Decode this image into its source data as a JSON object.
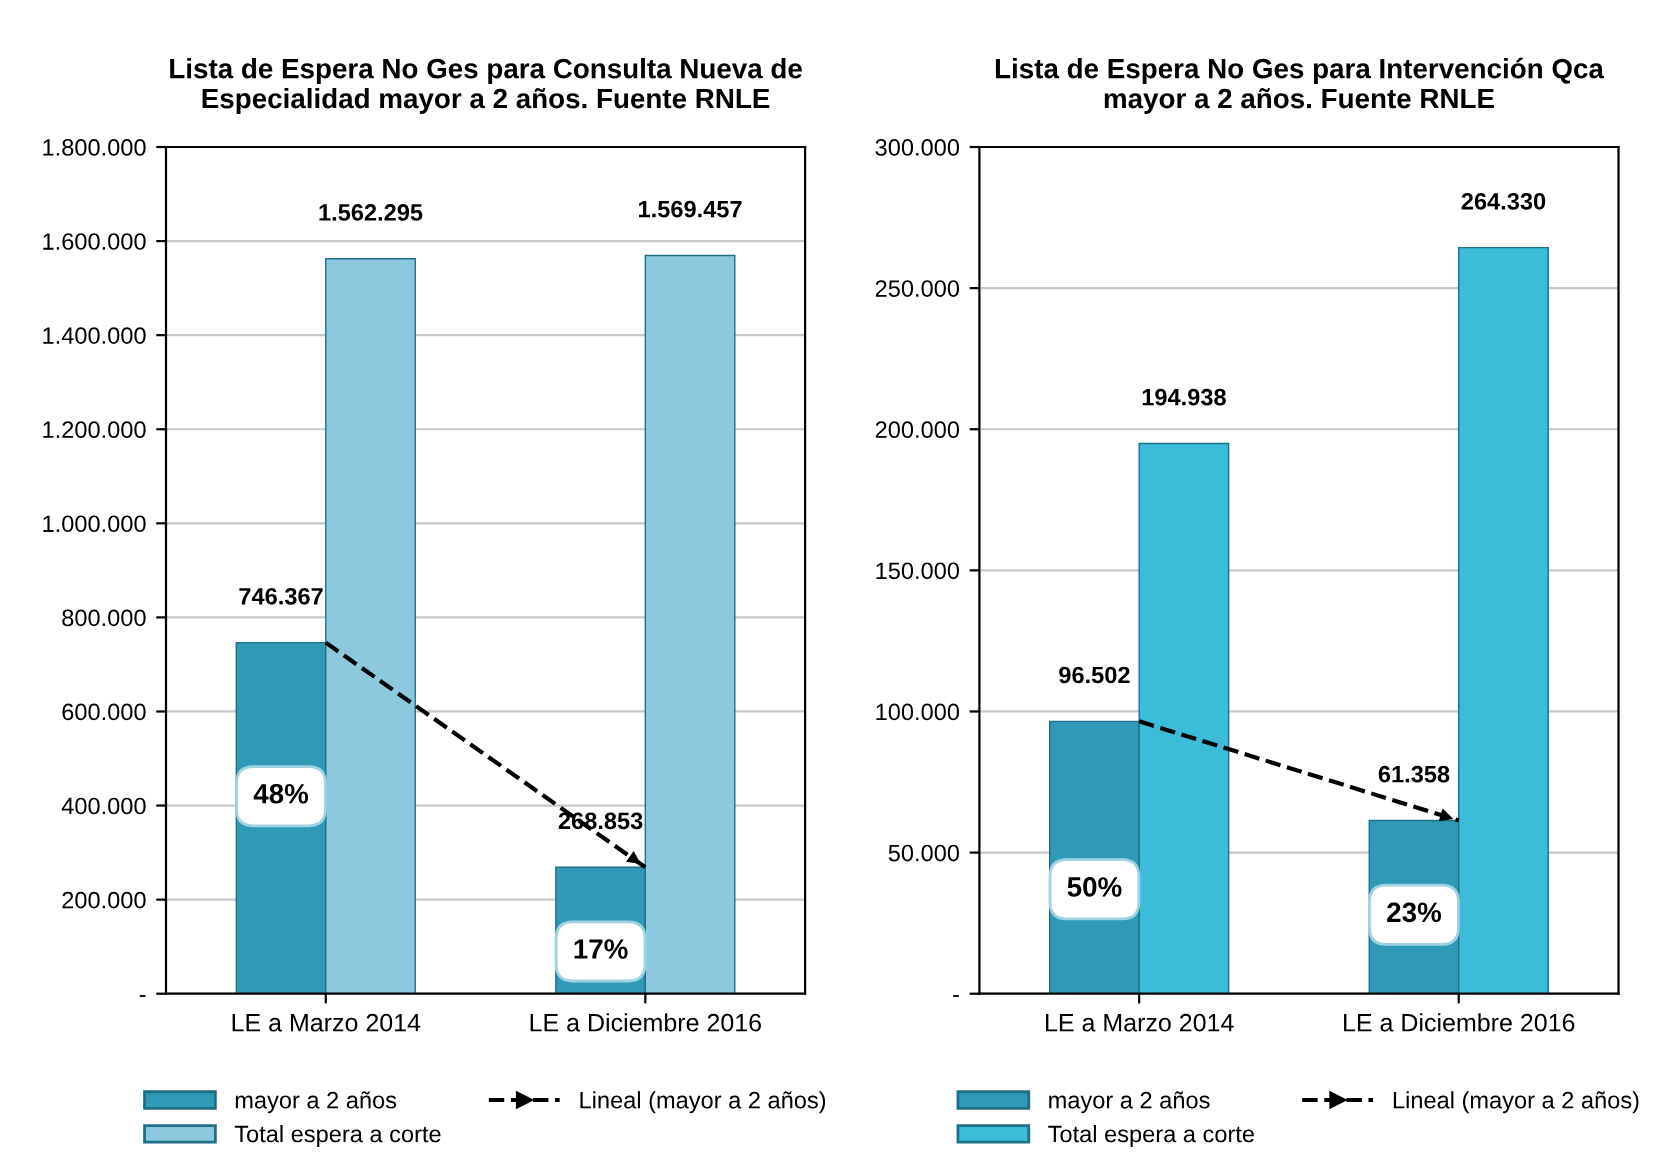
{
  "chart_data": [
    {
      "type": "bar",
      "title": "Lista de Espera No Ges para Consulta Nueva de Especialidad mayor a 2 años. Fuente RNLE",
      "categories": [
        "LE a Marzo 2014",
        "LE a Diciembre 2016"
      ],
      "series": [
        {
          "name": "mayor a 2 años",
          "color": "#2e9ab8",
          "values": [
            746367,
            268853
          ],
          "value_labels": [
            "746.367",
            "268.853"
          ]
        },
        {
          "name": "Total espera a corte",
          "color": "#8cc8de",
          "values": [
            1562295,
            1569457
          ],
          "value_labels": [
            "1.562.295",
            "1.569.457"
          ]
        },
        {
          "name": "Lineal (mayor a 2 años)",
          "type": "line",
          "color": "#000000",
          "line_style": "dashed",
          "values": [
            746367,
            268853
          ]
        }
      ],
      "ylim": [
        0,
        1800000
      ],
      "yticks": [
        {
          "value": 0,
          "label": "-"
        },
        {
          "value": 200000,
          "label": "200.000"
        },
        {
          "value": 400000,
          "label": "400.000"
        },
        {
          "value": 600000,
          "label": "600.000"
        },
        {
          "value": 800000,
          "label": "800.000"
        },
        {
          "value": 1000000,
          "label": "1.000.000"
        },
        {
          "value": 1200000,
          "label": "1.200.000"
        },
        {
          "value": 1400000,
          "label": "1.400.000"
        },
        {
          "value": 1600000,
          "label": "1.600.000"
        },
        {
          "value": 1800000,
          "label": "1.800.000"
        }
      ],
      "grid": "y",
      "legend": "bottom",
      "annotations": [
        {
          "text": "48%",
          "x": "LE a Marzo 2014",
          "y": 420000
        },
        {
          "text": "17%",
          "x": "LE a Diciembre 2016",
          "y": 90000
        }
      ]
    },
    {
      "type": "bar",
      "title": "Lista de Espera No Ges para Intervención Qca mayor a 2 años. Fuente RNLE",
      "categories": [
        "LE a Marzo 2014",
        "LE a Diciembre 2016"
      ],
      "series": [
        {
          "name": "mayor a 2 años",
          "color": "#2e9ab8",
          "values": [
            96502,
            61358
          ],
          "value_labels": [
            "96.502",
            "61.358"
          ]
        },
        {
          "name": "Total espera a corte",
          "color": "#3bbcd8",
          "values": [
            194938,
            264330
          ],
          "value_labels": [
            "194.938",
            "264.330"
          ]
        },
        {
          "name": "Lineal (mayor a 2 años)",
          "type": "line",
          "color": "#000000",
          "line_style": "dashed",
          "values": [
            96502,
            61358
          ]
        }
      ],
      "ylim": [
        0,
        300000
      ],
      "yticks": [
        {
          "value": 0,
          "label": "-"
        },
        {
          "value": 50000,
          "label": "50.000"
        },
        {
          "value": 100000,
          "label": "100.000"
        },
        {
          "value": 150000,
          "label": "150.000"
        },
        {
          "value": 200000,
          "label": "200.000"
        },
        {
          "value": 250000,
          "label": "250.000"
        },
        {
          "value": 300000,
          "label": "300.000"
        }
      ],
      "grid": "y",
      "legend": "bottom",
      "annotations": [
        {
          "text": "50%",
          "x": "LE a Marzo 2014",
          "y": 37000
        },
        {
          "text": "23%",
          "x": "LE a Diciembre 2016",
          "y": 28000
        }
      ]
    }
  ]
}
